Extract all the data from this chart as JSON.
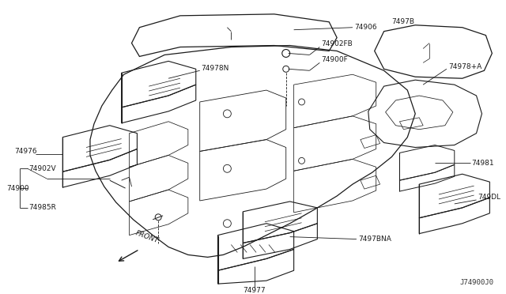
{
  "background_color": "#ffffff",
  "diagram_id": "J74900J0",
  "line_color": "#1a1a1a",
  "text_color": "#1a1a1a",
  "label_fontsize": 6.5,
  "parts": {
    "74906": {
      "label": [
        0.495,
        0.862
      ]
    },
    "74902FB": {
      "label": [
        0.618,
        0.81
      ]
    },
    "74900F": {
      "label": [
        0.618,
        0.79
      ]
    },
    "7497B": {
      "label": [
        0.78,
        0.84
      ]
    },
    "74978N": {
      "label": [
        0.255,
        0.7
      ]
    },
    "74978+A": {
      "label": [
        0.64,
        0.7
      ]
    },
    "74976": {
      "label": [
        0.1,
        0.56
      ]
    },
    "74981": {
      "label": [
        0.645,
        0.54
      ]
    },
    "74902V": {
      "label": [
        0.045,
        0.498
      ]
    },
    "74900": {
      "label": [
        0.025,
        0.475
      ]
    },
    "74985R": {
      "label": [
        0.045,
        0.45
      ]
    },
    "7497BNA": {
      "label": [
        0.54,
        0.33
      ]
    },
    "749DL": {
      "label": [
        0.67,
        0.36
      ]
    },
    "74977": {
      "label": [
        0.415,
        0.245
      ]
    }
  }
}
